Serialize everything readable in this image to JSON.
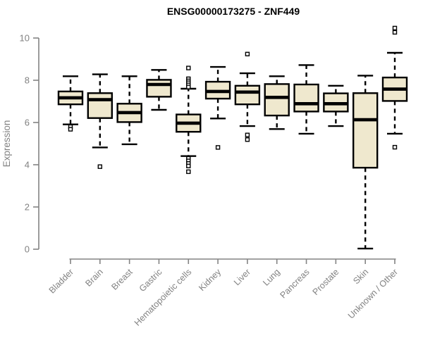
{
  "chart_data": {
    "type": "boxplot",
    "title": "ENSG00000173275 - ZNF449",
    "ylabel": "Expression",
    "ylim": [
      0,
      10
    ],
    "yticks": [
      0,
      2,
      4,
      6,
      8,
      10
    ],
    "grid": false,
    "legend": false,
    "colors": {
      "box_fill": "#EFE8CE",
      "box_stroke": "#000000",
      "axis_color": "#848484",
      "axis_text_color": "#828282",
      "outlier_fill": "#ffffff"
    },
    "categories": [
      "Bladder",
      "Brain",
      "Breast",
      "Gastric",
      "Hematopoietic cells",
      "Kidney",
      "Liver",
      "Lung",
      "Pancreas",
      "Prostate",
      "Skin",
      "Unknown / Other"
    ],
    "series": [
      {
        "name": "Bladder",
        "whisker_low": 5.91,
        "q1": 6.86,
        "median": 7.17,
        "q3": 7.47,
        "whisker_high": 8.19,
        "outliers": [
          5.8,
          5.68
        ]
      },
      {
        "name": "Brain",
        "whisker_low": 4.82,
        "q1": 6.21,
        "median": 7.08,
        "q3": 7.39,
        "whisker_high": 8.28,
        "outliers": [
          3.91
        ]
      },
      {
        "name": "Breast",
        "whisker_low": 4.97,
        "q1": 6.02,
        "median": 6.47,
        "q3": 6.89,
        "whisker_high": 8.19,
        "outliers": []
      },
      {
        "name": "Gastric",
        "whisker_low": 6.6,
        "q1": 7.22,
        "median": 7.8,
        "q3": 8.02,
        "whisker_high": 8.49,
        "outliers": []
      },
      {
        "name": "Hematopoietic cells",
        "whisker_low": 4.41,
        "q1": 5.56,
        "median": 5.97,
        "q3": 6.38,
        "whisker_high": 7.6,
        "outliers": [
          8.58,
          8.07,
          7.97,
          7.88,
          7.78,
          7.68,
          4.3,
          4.18,
          4.06,
          3.94,
          3.67
        ]
      },
      {
        "name": "Kidney",
        "whisker_low": 6.19,
        "q1": 7.13,
        "median": 7.47,
        "q3": 7.93,
        "whisker_high": 8.63,
        "outliers": [
          4.82
        ]
      },
      {
        "name": "Liver",
        "whisker_low": 5.83,
        "q1": 6.86,
        "median": 7.44,
        "q3": 7.74,
        "whisker_high": 8.33,
        "outliers": [
          9.24,
          5.41,
          5.19
        ]
      },
      {
        "name": "Lung",
        "whisker_low": 5.69,
        "q1": 6.33,
        "median": 7.19,
        "q3": 7.82,
        "whisker_high": 8.19,
        "outliers": []
      },
      {
        "name": "Pancreas",
        "whisker_low": 5.47,
        "q1": 6.52,
        "median": 6.89,
        "q3": 7.8,
        "whisker_high": 8.72,
        "outliers": []
      },
      {
        "name": "Prostate",
        "whisker_low": 5.83,
        "q1": 6.52,
        "median": 6.89,
        "q3": 7.38,
        "whisker_high": 7.74,
        "outliers": []
      },
      {
        "name": "Skin",
        "whisker_low": 0.03,
        "q1": 3.86,
        "median": 6.13,
        "q3": 7.39,
        "whisker_high": 8.22,
        "outliers": []
      },
      {
        "name": "Unknown / Other",
        "whisker_low": 5.47,
        "q1": 7.02,
        "median": 7.58,
        "q3": 8.13,
        "whisker_high": 9.3,
        "outliers": [
          10.47,
          10.27,
          4.83
        ]
      }
    ]
  }
}
